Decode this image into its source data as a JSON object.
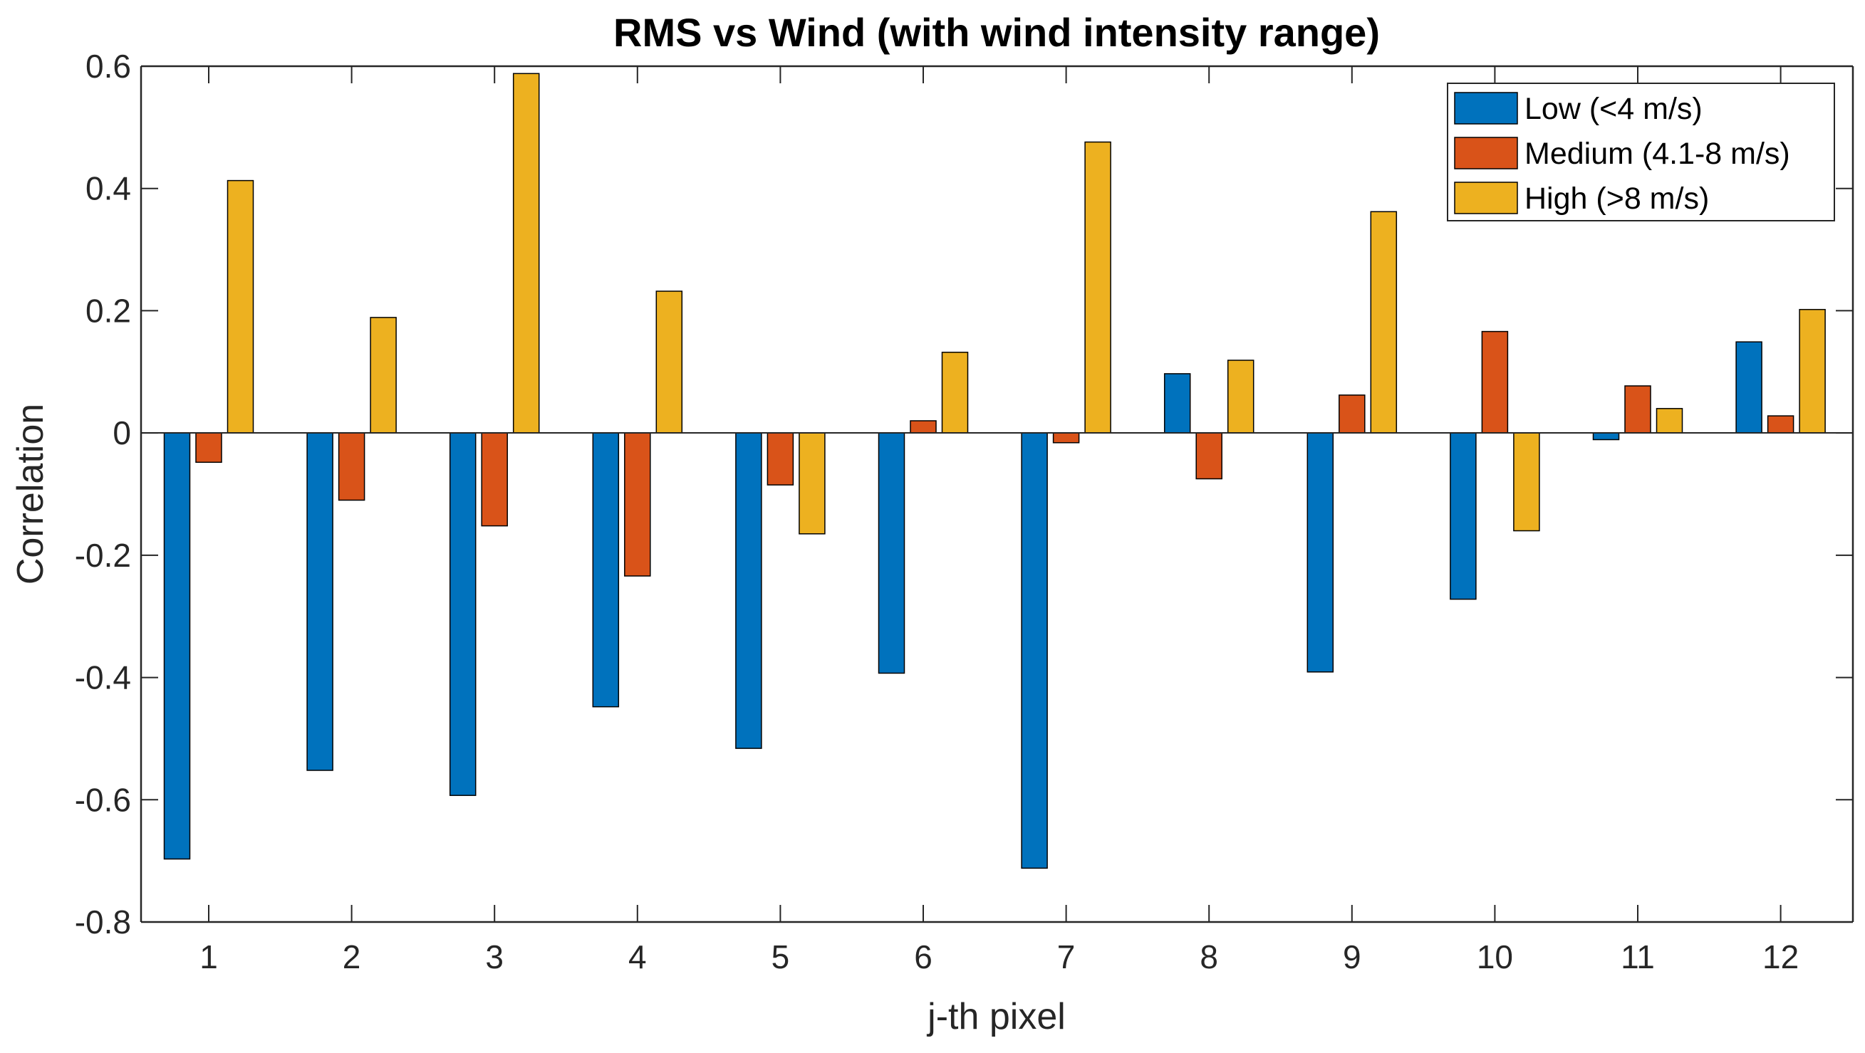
{
  "chart_data": {
    "type": "bar",
    "title": "RMS vs Wind (with wind intensity range)",
    "xlabel": "j-th pixel",
    "ylabel": "Correlation",
    "categories": [
      "1",
      "2",
      "3",
      "4",
      "5",
      "6",
      "7",
      "8",
      "9",
      "10",
      "11",
      "12"
    ],
    "ylim": [
      -0.8,
      0.6
    ],
    "yticks": [
      -0.8,
      -0.6,
      -0.4,
      -0.2,
      0,
      0.2,
      0.4,
      0.6
    ],
    "ytick_labels": [
      "-0.8",
      "-0.6",
      "-0.4",
      "-0.2",
      "0",
      "0.2",
      "0.4",
      "0.6"
    ],
    "grid": false,
    "legend_position": "top-right",
    "series": [
      {
        "name": "Low (<4 m/s)",
        "color": "#0072BD",
        "values": [
          -0.697,
          -0.552,
          -0.593,
          -0.448,
          -0.516,
          -0.393,
          -0.712,
          0.097,
          -0.391,
          -0.272,
          -0.011,
          0.149
        ]
      },
      {
        "name": "Medium (4.1-8 m/s)",
        "color": "#D95319",
        "values": [
          -0.048,
          -0.11,
          -0.152,
          -0.234,
          -0.085,
          0.02,
          -0.016,
          -0.075,
          0.062,
          0.166,
          0.077,
          0.028
        ]
      },
      {
        "name": "High (>8 m/s)",
        "color": "#EDB120",
        "values": [
          0.413,
          0.189,
          0.588,
          0.232,
          -0.165,
          0.132,
          0.476,
          0.119,
          0.362,
          -0.16,
          0.04,
          0.202
        ]
      }
    ]
  }
}
